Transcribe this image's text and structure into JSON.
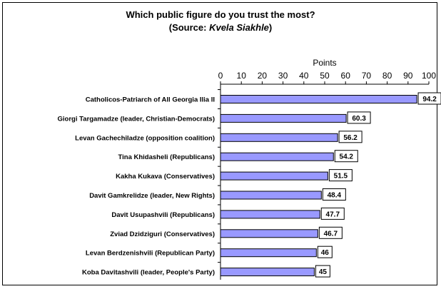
{
  "chart_data": {
    "type": "bar",
    "orientation": "horizontal",
    "title_line1": "Which public figure do you trust the most?",
    "title_line2_prefix": "(Source: ",
    "title_line2_source": "Kvela Siakhle",
    "title_line2_suffix": ")",
    "xlabel": "Points",
    "xlim": [
      0,
      100
    ],
    "xticks": [
      0,
      10,
      20,
      30,
      40,
      50,
      60,
      70,
      80,
      90,
      100
    ],
    "xaxis_position": "top",
    "grid": false,
    "legend": "none",
    "categories": [
      "Catholicos-Patriarch of All Georgia Ilia II",
      "Giorgi Targamadze (leader, Christian-Democrats)",
      "Levan Gachechiladze (opposition coalition)",
      "Tina Khidasheli (Republicans)",
      "Kakha Kukava (Conservatives)",
      "Davit Gamkrelidze (leader, New Rights)",
      "Davit Usupashvili (Republicans)",
      "Zviad Dzidziguri (Conservatives)",
      "Levan Berdzenishvili (Republican Party)",
      "Koba Davitashvili (leader, People's Party)"
    ],
    "values": [
      94.2,
      60.3,
      56.2,
      54.2,
      51.5,
      48.4,
      47.7,
      46.7,
      46,
      45
    ],
    "data_labels": [
      "94.2",
      "60.3",
      "56.2",
      "54.2",
      "51.5",
      "48.4",
      "47.7",
      "46.7",
      "46",
      "45"
    ],
    "colors": {
      "bar_fill": "#9999ff",
      "bar_stroke": "#000000",
      "label_box_fill": "#ffffff"
    }
  }
}
